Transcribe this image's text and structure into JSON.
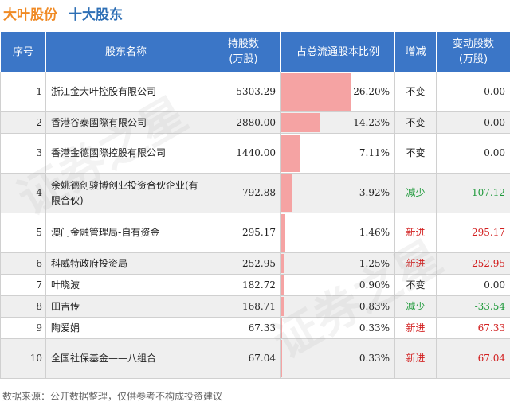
{
  "title": {
    "main": "大叶股份",
    "sub": "十大股东"
  },
  "headers": {
    "index": "序号",
    "name": "股东名称",
    "shares": "持股数\n(万股)",
    "ratio": "占总流通股本比例",
    "change": "增减",
    "delta": "变动股数\n(万股)"
  },
  "rows": [
    {
      "index": "1",
      "name": "浙江金大叶控股有限公司",
      "shares": "5303.29",
      "ratio": "26.20%",
      "ratio_value": 26.2,
      "change": "不变",
      "change_type": "same",
      "delta": "0.00"
    },
    {
      "index": "2",
      "name": "香港谷泰國際有限公司",
      "shares": "2880.00",
      "ratio": "14.23%",
      "ratio_value": 14.23,
      "change": "不变",
      "change_type": "same",
      "delta": "0.00"
    },
    {
      "index": "3",
      "name": "香港金德國際控股有限公司",
      "shares": "1440.00",
      "ratio": "7.11%",
      "ratio_value": 7.11,
      "change": "不变",
      "change_type": "same",
      "delta": "0.00"
    },
    {
      "index": "4",
      "name": "余姚德创骏博创业投资合伙企业(有限合伙)",
      "shares": "792.88",
      "ratio": "3.92%",
      "ratio_value": 3.92,
      "change": "减少",
      "change_type": "down",
      "delta": "-107.12"
    },
    {
      "index": "5",
      "name": "澳门金融管理局-自有资金",
      "shares": "295.17",
      "ratio": "1.46%",
      "ratio_value": 1.46,
      "change": "新进",
      "change_type": "new",
      "delta": "295.17"
    },
    {
      "index": "6",
      "name": "科威特政府投资局",
      "shares": "252.95",
      "ratio": "1.25%",
      "ratio_value": 1.25,
      "change": "新进",
      "change_type": "new",
      "delta": "252.95"
    },
    {
      "index": "7",
      "name": "叶晓波",
      "shares": "182.72",
      "ratio": "0.90%",
      "ratio_value": 0.9,
      "change": "不变",
      "change_type": "same",
      "delta": "0.00"
    },
    {
      "index": "8",
      "name": "田吉传",
      "shares": "168.71",
      "ratio": "0.83%",
      "ratio_value": 0.83,
      "change": "减少",
      "change_type": "down",
      "delta": "-33.54"
    },
    {
      "index": "9",
      "name": "陶爱娟",
      "shares": "67.33",
      "ratio": "0.33%",
      "ratio_value": 0.33,
      "change": "新进",
      "change_type": "new",
      "delta": "67.33"
    },
    {
      "index": "10",
      "name": "全国社保基金——八组合",
      "shares": "67.04",
      "ratio": "0.33%",
      "ratio_value": 0.33,
      "change": "新进",
      "change_type": "new",
      "delta": "67.04"
    }
  ],
  "source": "数据来源：公开数据整理，仅供参考不构成投资建议",
  "watermark": "证券之星",
  "colors": {
    "header_bg": "#3b76c7",
    "title_main": "#f08a24",
    "title_sub": "#2e6fb5",
    "bar": "#f5a3a3",
    "new": "#d21f1f",
    "down": "#1f9a3b"
  }
}
